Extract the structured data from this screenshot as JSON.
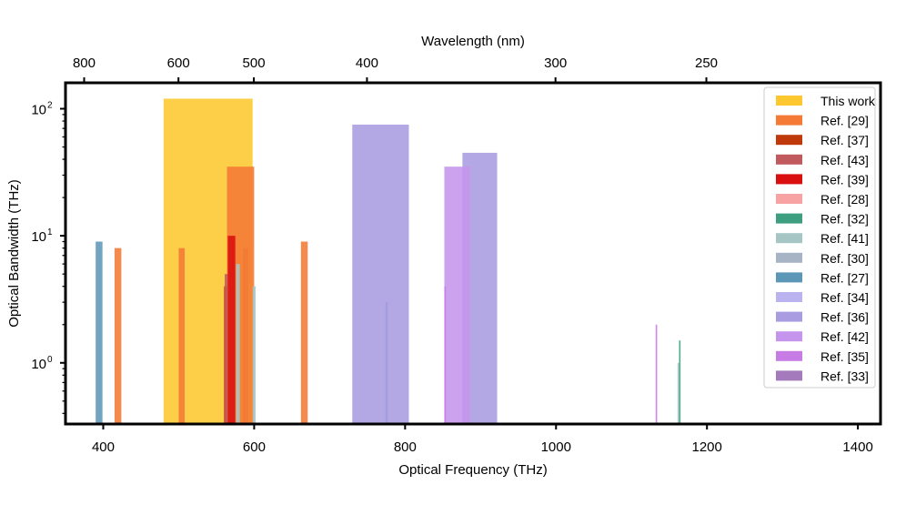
{
  "chart_data": {
    "type": "bar",
    "xlabel": "Optical Frequency (THz)",
    "ylabel": "Optical Bandwidth (THz)",
    "top_xlabel": "Wavelength (nm)",
    "xlim": [
      350,
      1430
    ],
    "ylim": [
      0.33,
      160
    ],
    "yscale": "log",
    "x_ticks": [
      400,
      600,
      800,
      1000,
      1200,
      1400
    ],
    "y_ticks": [
      {
        "value": 1,
        "label": "10",
        "exp": "0"
      },
      {
        "value": 10,
        "label": "10",
        "exp": "1"
      },
      {
        "value": 100,
        "label": "10",
        "exp": "2"
      }
    ],
    "top_ticks": [
      {
        "label": "800",
        "freq": 374.7
      },
      {
        "label": "600",
        "freq": 499.7
      },
      {
        "label": "500",
        "freq": 599.6
      },
      {
        "label": "400",
        "freq": 749.5
      },
      {
        "label": "300",
        "freq": 999.3
      },
      {
        "label": "250",
        "freq": 1199.2
      }
    ],
    "legend_position": "top-right",
    "series": [
      {
        "name": "This work",
        "color": "#FDC82F",
        "bars": [
          {
            "start": 480,
            "end": 598,
            "value": 120
          }
        ]
      },
      {
        "name": "Ref. [29]",
        "color": "#F47A36",
        "bars": [
          {
            "start": 415,
            "end": 424,
            "value": 8
          },
          {
            "start": 500,
            "end": 508,
            "value": 8
          },
          {
            "start": 564,
            "end": 600,
            "value": 35
          },
          {
            "start": 585,
            "end": 592,
            "value": 8
          },
          {
            "start": 662,
            "end": 671,
            "value": 9
          }
        ]
      },
      {
        "name": "Ref. [37]",
        "color": "#C0390B",
        "bars": [
          {
            "start": 560,
            "end": 564,
            "value": 4
          }
        ]
      },
      {
        "name": "Ref. [43]",
        "color": "#C05A5F",
        "bars": [
          {
            "start": 561,
            "end": 565,
            "value": 5
          }
        ]
      },
      {
        "name": "Ref. [39]",
        "color": "#D90E0E",
        "bars": [
          {
            "start": 565,
            "end": 575,
            "value": 10
          }
        ]
      },
      {
        "name": "Ref. [28]",
        "color": "#F7A3A3",
        "bars": []
      },
      {
        "name": "Ref. [32]",
        "color": "#3E9F80",
        "bars": [
          {
            "start": 1163,
            "end": 1165,
            "value": 1.5
          }
        ]
      },
      {
        "name": "Ref. [41]",
        "color": "#A6C6C6",
        "bars": [
          {
            "start": 576,
            "end": 581,
            "value": 6
          },
          {
            "start": 598,
            "end": 602,
            "value": 4
          },
          {
            "start": 1161,
            "end": 1163,
            "value": 1
          }
        ]
      },
      {
        "name": "Ref. [30]",
        "color": "#A6B4C6",
        "bars": []
      },
      {
        "name": "Ref. [27]",
        "color": "#5C97B7",
        "bars": [
          {
            "start": 390,
            "end": 399,
            "value": 9
          },
          {
            "start": 774,
            "end": 777,
            "value": 3
          }
        ]
      },
      {
        "name": "Ref. [34]",
        "color": "#BBB3EF",
        "bars": []
      },
      {
        "name": "Ref. [36]",
        "color": "#A99CE0",
        "bars": [
          {
            "start": 730,
            "end": 805,
            "value": 75
          },
          {
            "start": 876,
            "end": 922,
            "value": 45
          }
        ]
      },
      {
        "name": "Ref. [42]",
        "color": "#C594EC",
        "bars": [
          {
            "start": 852,
            "end": 886,
            "value": 35
          }
        ]
      },
      {
        "name": "Ref. [35]",
        "color": "#C67BE5",
        "bars": [
          {
            "start": 852,
            "end": 854,
            "value": 4
          },
          {
            "start": 1132,
            "end": 1134,
            "value": 2
          }
        ]
      },
      {
        "name": "Ref. [33]",
        "color": "#A47ABD",
        "bars": []
      }
    ]
  }
}
